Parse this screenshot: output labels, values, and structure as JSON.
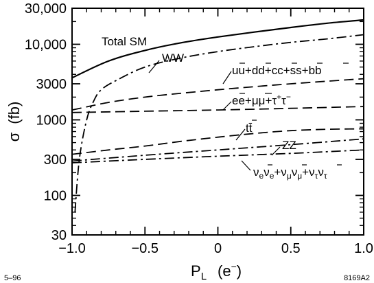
{
  "chart_data": {
    "type": "line",
    "title": "",
    "xlabel": "P_L (e⁻)",
    "ylabel": "σ (fb)",
    "xlim": [
      -1.0,
      1.0
    ],
    "ylim": [
      30,
      30000
    ],
    "yscale": "log",
    "grid": false,
    "legend": "none (curves labeled inline)",
    "x_ticks": [
      {
        "v": -1.0,
        "label": "−1.0"
      },
      {
        "v": -0.5,
        "label": "−0.5"
      },
      {
        "v": 0.0,
        "label": "0"
      },
      {
        "v": 0.5,
        "label": "0.5"
      },
      {
        "v": 1.0,
        "label": "1.0"
      }
    ],
    "y_ticks": [
      {
        "v": 30,
        "label": "30"
      },
      {
        "v": 100,
        "label": "100"
      },
      {
        "v": 300,
        "label": "300"
      },
      {
        "v": 1000,
        "label": "1000"
      },
      {
        "v": 3000,
        "label": "3000"
      },
      {
        "v": 10000,
        "label": "10,000"
      },
      {
        "v": 30000,
        "label": "30,000"
      }
    ],
    "series": [
      {
        "name": "Total SM",
        "style": "solid",
        "x": [
          -1.0,
          -0.75,
          -0.5,
          -0.25,
          0.0,
          0.25,
          0.5,
          0.75,
          1.0
        ],
        "y": [
          3600,
          6000,
          8300,
          10500,
          12500,
          14500,
          16700,
          19000,
          21000
        ]
      },
      {
        "name": "WW",
        "style": "dashdot",
        "x": [
          -0.98,
          -0.95,
          -0.9,
          -0.85,
          -0.8,
          -0.7,
          -0.5,
          -0.25,
          0.0,
          0.25,
          0.5,
          0.75,
          1.0
        ],
        "y": [
          60,
          300,
          1000,
          1800,
          2500,
          3300,
          5000,
          6600,
          8000,
          9300,
          10600,
          11800,
          13400
        ]
      },
      {
        "name": "uū+dd̄+cc̄+ss̄+bb̄",
        "style": "dashed",
        "x": [
          -1.0,
          -0.75,
          -0.5,
          -0.25,
          0.0,
          0.25,
          0.5,
          0.75,
          1.0
        ],
        "y": [
          1350,
          1700,
          2000,
          2250,
          2500,
          2750,
          3000,
          3250,
          3500
        ]
      },
      {
        "name": "eē+μμ̄+τ⁺τ⁻",
        "style": "dashed",
        "x": [
          -1.0,
          -0.5,
          0.0,
          0.5,
          1.0
        ],
        "y": [
          1250,
          1300,
          1350,
          1420,
          1500
        ]
      },
      {
        "name": "tt̄",
        "style": "dashed",
        "x": [
          -1.0,
          -0.75,
          -0.5,
          -0.25,
          0.0,
          0.25,
          0.5,
          0.75,
          1.0
        ],
        "y": [
          350,
          400,
          450,
          520,
          590,
          660,
          720,
          750,
          760
        ]
      },
      {
        "name": "ZZ",
        "style": "dashdot",
        "x": [
          -1.0,
          -0.5,
          0.0,
          0.5,
          1.0
        ],
        "y": [
          285,
          340,
          400,
          470,
          560
        ]
      },
      {
        "name": "ν_eν̄_e+ν_μν̄_μ+ν_τν̄_τ",
        "style": "dashdot",
        "x": [
          -1.0,
          -0.5,
          0.0,
          0.5,
          1.0
        ],
        "y": [
          270,
          300,
          330,
          360,
          400
        ]
      }
    ]
  },
  "labels": {
    "total_sm": "Total SM",
    "ww": "WW",
    "zz": "ZZ",
    "tt": "tt̄",
    "quarks": {
      "u": "uu",
      "d": "+dd",
      "c": "+cc",
      "s": "+ss",
      "b": "+bb"
    },
    "leptons": {
      "e": "ee",
      "mu": "+μμ",
      "tau": "+τ",
      "tau_sup1": "+",
      "tau2": "τ",
      "tau_sup2": "−"
    },
    "neutrinos": {
      "nu1": "ν",
      "sub_e1": "e",
      "nu1b": "ν",
      "sub_e2": "e",
      "nu2": "+ν",
      "sub_mu1": "μ",
      "nu2b": "ν",
      "sub_mu2": "μ",
      "nu3": "+ν",
      "sub_tau1": "τ",
      "nu3b": "ν",
      "sub_tau2": "τ"
    },
    "y_axis_sigma": "σ",
    "y_axis_unit": "(fb)",
    "x_axis_p": "P",
    "x_axis_sub": "L",
    "x_axis_paren": "(e",
    "x_axis_sup": "−",
    "x_axis_close": ")"
  },
  "footer": {
    "left": "5–96",
    "right": "8169A2"
  }
}
